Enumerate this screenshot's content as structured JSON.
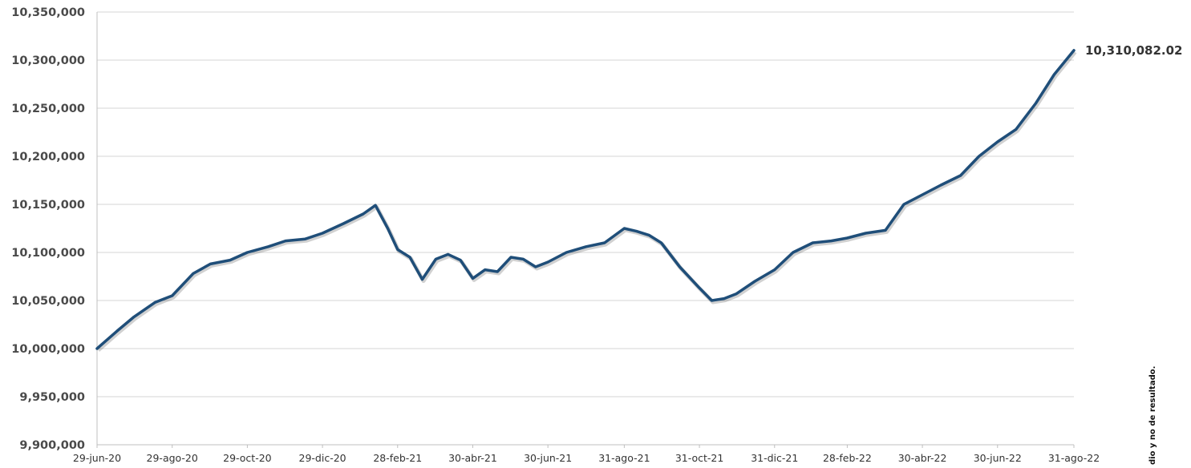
{
  "chart_data": {
    "type": "line",
    "title": "",
    "xlabel": "",
    "ylabel": "",
    "ylim": [
      9900000,
      10350000
    ],
    "y_ticks": [
      "9,900,000",
      "9,950,000",
      "10,000,000",
      "10,050,000",
      "10,100,000",
      "10,150,000",
      "10,200,000",
      "10,250,000",
      "10,300,000",
      "10,350,000"
    ],
    "x_ticks": [
      "29-jun-20",
      "29-ago-20",
      "29-oct-20",
      "29-dic-20",
      "28-feb-21",
      "30-abr-21",
      "30-jun-21",
      "31-ago-21",
      "31-oct-21",
      "31-dic-21",
      "28-feb-22",
      "30-abr-22",
      "30-jun-22",
      "31-ago-22"
    ],
    "grid": true,
    "legend": "none",
    "series": [
      {
        "color": "#1f4e79",
        "x": [
          "29-jun-20",
          "15-jul-20",
          "29-jul-20",
          "15-ago-20",
          "29-ago-20",
          "15-sep-20",
          "29-sep-20",
          "15-oct-20",
          "29-oct-20",
          "15-nov-20",
          "29-nov-20",
          "15-dic-20",
          "29-dic-20",
          "15-ene-21",
          "31-ene-21",
          "10-feb-21",
          "20-feb-21",
          "28-feb-21",
          "10-mar-21",
          "20-mar-21",
          "31-mar-21",
          "10-abr-21",
          "20-abr-21",
          "30-abr-21",
          "10-may-21",
          "20-may-21",
          "31-may-21",
          "10-jun-21",
          "20-jun-21",
          "30-jun-21",
          "15-jul-21",
          "31-jul-21",
          "15-ago-21",
          "31-ago-21",
          "10-sep-21",
          "20-sep-21",
          "30-sep-21",
          "15-oct-21",
          "31-oct-21",
          "10-nov-21",
          "20-nov-21",
          "30-nov-21",
          "15-dic-21",
          "31-dic-21",
          "15-ene-22",
          "31-ene-22",
          "15-feb-22",
          "28-feb-22",
          "15-mar-22",
          "31-mar-22",
          "15-abr-22",
          "30-abr-22",
          "15-may-22",
          "31-may-22",
          "15-jun-22",
          "30-jun-22",
          "15-jul-22",
          "31-jul-22",
          "15-ago-22",
          "31-ago-22"
        ],
        "values": [
          10000000,
          10018000,
          10033000,
          10048000,
          10055000,
          10078000,
          10088000,
          10092000,
          10100000,
          10106000,
          10112000,
          10114000,
          10120000,
          10130000,
          10140000,
          10149000,
          10125000,
          10103000,
          10095000,
          10072000,
          10093000,
          10098000,
          10092000,
          10073000,
          10082000,
          10080000,
          10095000,
          10093000,
          10085000,
          10090000,
          10100000,
          10106000,
          10110000,
          10125000,
          10122000,
          10118000,
          10110000,
          10085000,
          10063000,
          10050000,
          10052000,
          10057000,
          10070000,
          10082000,
          10100000,
          10110000,
          10112000,
          10115000,
          10120000,
          10123000,
          10150000,
          10160000,
          10170000,
          10180000,
          10200000,
          10215000,
          10228000,
          10255000,
          10285000,
          10310082.02
        ]
      }
    ],
    "annotations": [
      "10,310,082.02"
    ],
    "side_note": "dio y no de resultado."
  }
}
